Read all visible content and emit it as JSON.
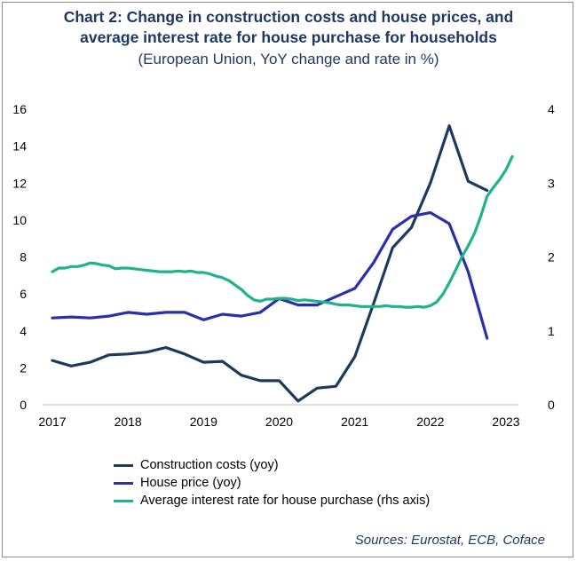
{
  "title_line1": "Chart 2: Change in construction costs and house prices, and",
  "title_line2": "average interest rate for house purchase for households",
  "subtitle": "(European Union, YoY change and rate in %)",
  "source": "Sources: Eurostat, ECB, Coface",
  "colors": {
    "construction": "#1b3a5c",
    "house": "#2b2faa",
    "interest": "#1fb38a"
  },
  "chart_data": {
    "type": "line",
    "title": "Chart 2: Change in construction costs and house prices, and average interest rate for house purchase for households",
    "subtitle": "(European Union, YoY change and rate in %)",
    "x_ticks": [
      "2017",
      "2018",
      "2019",
      "2020",
      "2021",
      "2022",
      "2023"
    ],
    "xlim": [
      2017,
      2023
    ],
    "ylim_left": [
      0,
      16
    ],
    "yticks_left": [
      "0",
      "2",
      "4",
      "6",
      "8",
      "10",
      "12",
      "14",
      "16"
    ],
    "ylim_right": [
      0,
      4
    ],
    "yticks_right": [
      "0",
      "1",
      "2",
      "3",
      "4"
    ],
    "grid": false,
    "legend_position": "bottom-left",
    "series": [
      {
        "name": "Construction costs (yoy)",
        "axis": "left",
        "x": [
          2017.0,
          2017.25,
          2017.5,
          2017.75,
          2018.0,
          2018.25,
          2018.5,
          2018.75,
          2019.0,
          2019.25,
          2019.5,
          2019.75,
          2020.0,
          2020.25,
          2020.5,
          2020.75,
          2021.0,
          2021.25,
          2021.5,
          2021.75,
          2022.0,
          2022.25,
          2022.5,
          2022.75
        ],
        "values": [
          2.4,
          2.1,
          2.3,
          2.7,
          2.75,
          2.85,
          3.1,
          2.75,
          2.3,
          2.35,
          1.6,
          1.3,
          1.3,
          0.2,
          0.9,
          1.0,
          2.6,
          5.5,
          8.5,
          9.6,
          12.0,
          15.1,
          12.1,
          11.6
        ]
      },
      {
        "name": "House price (yoy)",
        "axis": "left",
        "x": [
          2017.0,
          2017.25,
          2017.5,
          2017.75,
          2018.0,
          2018.25,
          2018.5,
          2018.75,
          2019.0,
          2019.25,
          2019.5,
          2019.75,
          2020.0,
          2020.25,
          2020.5,
          2020.75,
          2021.0,
          2021.25,
          2021.5,
          2021.75,
          2022.0,
          2022.25,
          2022.5,
          2022.75
        ],
        "values": [
          4.7,
          4.75,
          4.7,
          4.8,
          5.0,
          4.9,
          5.0,
          5.0,
          4.6,
          4.9,
          4.8,
          5.0,
          5.75,
          5.4,
          5.4,
          5.85,
          6.3,
          7.7,
          9.5,
          10.2,
          10.4,
          9.8,
          7.2,
          3.6
        ]
      },
      {
        "name": "Average interest rate for house purchase (rhs axis)",
        "axis": "right",
        "x": [
          2017.0,
          2017.083,
          2017.167,
          2017.25,
          2017.333,
          2017.417,
          2017.5,
          2017.583,
          2017.667,
          2017.75,
          2017.833,
          2017.917,
          2018.0,
          2018.083,
          2018.167,
          2018.25,
          2018.333,
          2018.417,
          2018.5,
          2018.583,
          2018.667,
          2018.75,
          2018.833,
          2018.917,
          2019.0,
          2019.083,
          2019.167,
          2019.25,
          2019.333,
          2019.417,
          2019.5,
          2019.583,
          2019.667,
          2019.75,
          2019.833,
          2019.917,
          2020.0,
          2020.083,
          2020.167,
          2020.25,
          2020.333,
          2020.417,
          2020.5,
          2020.583,
          2020.667,
          2020.75,
          2020.833,
          2020.917,
          2021.0,
          2021.083,
          2021.167,
          2021.25,
          2021.333,
          2021.417,
          2021.5,
          2021.583,
          2021.667,
          2021.75,
          2021.833,
          2021.917,
          2022.0,
          2022.083,
          2022.167,
          2022.25,
          2022.333,
          2022.417,
          2022.5,
          2022.583,
          2022.667,
          2022.75,
          2022.833,
          2022.917,
          2023.0,
          2023.083
        ],
        "values": [
          1.8,
          1.85,
          1.85,
          1.87,
          1.87,
          1.89,
          1.92,
          1.91,
          1.89,
          1.88,
          1.84,
          1.85,
          1.85,
          1.84,
          1.83,
          1.82,
          1.81,
          1.8,
          1.8,
          1.8,
          1.81,
          1.8,
          1.81,
          1.79,
          1.79,
          1.77,
          1.74,
          1.72,
          1.68,
          1.62,
          1.56,
          1.48,
          1.42,
          1.4,
          1.43,
          1.43,
          1.44,
          1.44,
          1.43,
          1.41,
          1.42,
          1.41,
          1.4,
          1.39,
          1.38,
          1.36,
          1.35,
          1.35,
          1.34,
          1.33,
          1.33,
          1.33,
          1.33,
          1.34,
          1.33,
          1.33,
          1.32,
          1.32,
          1.33,
          1.32,
          1.34,
          1.39,
          1.5,
          1.65,
          1.82,
          2.0,
          2.15,
          2.32,
          2.55,
          2.82,
          2.94,
          3.05,
          3.18,
          3.36
        ]
      }
    ]
  }
}
